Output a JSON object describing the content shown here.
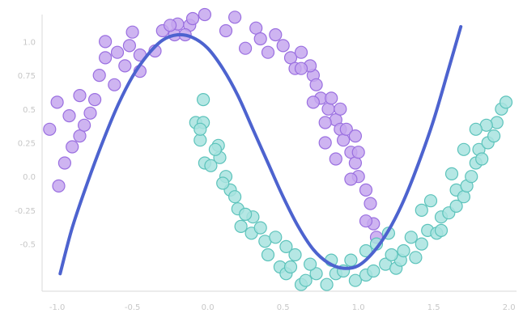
{
  "chart_data": {
    "type": "scatter",
    "title": "",
    "xlabel": "",
    "ylabel": "",
    "xlim": [
      -1.1,
      2.05
    ],
    "ylim": [
      -0.85,
      1.2
    ],
    "grid": false,
    "x_ticks": [
      {
        "value": -1.0,
        "label": "-1.0"
      },
      {
        "value": -0.5,
        "label": "-0.5"
      },
      {
        "value": 0.0,
        "label": "0.0"
      },
      {
        "value": 0.5,
        "label": "0.5"
      },
      {
        "value": 1.0,
        "label": "1.0"
      },
      {
        "value": 1.5,
        "label": "1.5"
      },
      {
        "value": 2.0,
        "label": "2.0"
      }
    ],
    "y_ticks": [
      {
        "value": 1.0,
        "label": "1.0"
      },
      {
        "value": 0.75,
        "label": "0.75"
      },
      {
        "value": 0.5,
        "label": "0.5"
      },
      {
        "value": 0.25,
        "label": "0.25"
      },
      {
        "value": 0.0,
        "label": "0.0"
      },
      {
        "value": -0.25,
        "label": "-0.25"
      },
      {
        "value": -0.5,
        "label": "-0.5"
      }
    ],
    "colors": {
      "class_a_fill": "#c6a7ef",
      "class_a_edge": "#9a6fe0",
      "class_b_fill": "#a8e3df",
      "class_b_edge": "#5cc3bb",
      "boundary": "#4d63cf"
    },
    "series": [
      {
        "points": [
          [
            -1.05,
            0.35
          ],
          [
            -1.0,
            0.55
          ],
          [
            -0.92,
            0.45
          ],
          [
            -0.85,
            0.6
          ],
          [
            -0.78,
            0.47
          ],
          [
            -0.9,
            0.22
          ],
          [
            -0.95,
            0.1
          ],
          [
            -0.99,
            -0.07
          ],
          [
            -0.85,
            0.3
          ],
          [
            -0.82,
            0.38
          ],
          [
            -0.75,
            0.57
          ],
          [
            -0.72,
            0.75
          ],
          [
            -0.68,
            0.88
          ],
          [
            -0.6,
            0.92
          ],
          [
            -0.55,
            0.82
          ],
          [
            -0.52,
            0.97
          ],
          [
            -0.5,
            1.07
          ],
          [
            -0.45,
            0.9
          ],
          [
            -0.45,
            0.78
          ],
          [
            -0.3,
            1.08
          ],
          [
            -0.35,
            0.93
          ],
          [
            -0.22,
            1.05
          ],
          [
            -0.2,
            1.13
          ],
          [
            -0.12,
            1.12
          ],
          [
            -0.1,
            1.17
          ],
          [
            -0.02,
            1.2
          ],
          [
            0.12,
            1.08
          ],
          [
            0.18,
            1.18
          ],
          [
            0.32,
            1.1
          ],
          [
            0.35,
            1.02
          ],
          [
            0.45,
            1.05
          ],
          [
            0.5,
            0.97
          ],
          [
            0.55,
            0.88
          ],
          [
            0.62,
            0.92
          ],
          [
            0.7,
            0.75
          ],
          [
            0.72,
            0.68
          ],
          [
            0.75,
            0.58
          ],
          [
            0.8,
            0.5
          ],
          [
            0.85,
            0.42
          ],
          [
            0.88,
            0.35
          ],
          [
            0.9,
            0.27
          ],
          [
            0.95,
            0.18
          ],
          [
            0.98,
            0.1
          ],
          [
            1.0,
            0.0
          ],
          [
            1.05,
            -0.1
          ],
          [
            1.08,
            -0.2
          ],
          [
            1.1,
            -0.35
          ],
          [
            1.05,
            -0.33
          ],
          [
            1.12,
            -0.45
          ],
          [
            1.0,
            0.18
          ],
          [
            0.92,
            0.35
          ],
          [
            0.82,
            0.58
          ],
          [
            0.68,
            0.82
          ],
          [
            0.58,
            0.8
          ],
          [
            0.85,
            0.13
          ],
          [
            0.78,
            0.25
          ],
          [
            0.98,
            0.3
          ],
          [
            0.4,
            0.92
          ],
          [
            0.25,
            0.95
          ],
          [
            -0.25,
            1.12
          ],
          [
            0.62,
            0.8
          ],
          [
            0.78,
            0.4
          ],
          [
            0.95,
            -0.02
          ],
          [
            0.88,
            0.5
          ],
          [
            0.7,
            0.55
          ],
          [
            -0.62,
            0.68
          ],
          [
            -0.68,
            1.0
          ],
          [
            -0.15,
            1.05
          ]
        ]
      },
      {
        "points": [
          [
            -0.03,
            0.57
          ],
          [
            -0.08,
            0.4
          ],
          [
            -0.03,
            0.4
          ],
          [
            -0.05,
            0.27
          ],
          [
            -0.02,
            0.1
          ],
          [
            0.07,
            0.23
          ],
          [
            0.08,
            0.14
          ],
          [
            0.12,
            0.0
          ],
          [
            0.15,
            -0.1
          ],
          [
            0.2,
            -0.24
          ],
          [
            0.22,
            -0.37
          ],
          [
            0.29,
            -0.42
          ],
          [
            0.3,
            -0.3
          ],
          [
            0.38,
            -0.48
          ],
          [
            0.4,
            -0.58
          ],
          [
            0.48,
            -0.67
          ],
          [
            0.52,
            -0.72
          ],
          [
            0.55,
            -0.67
          ],
          [
            0.62,
            -0.8
          ],
          [
            0.65,
            -0.77
          ],
          [
            0.72,
            -0.72
          ],
          [
            0.79,
            -0.8
          ],
          [
            0.85,
            -0.72
          ],
          [
            0.9,
            -0.7
          ],
          [
            0.98,
            -0.77
          ],
          [
            1.05,
            -0.73
          ],
          [
            1.1,
            -0.7
          ],
          [
            1.18,
            -0.65
          ],
          [
            1.25,
            -0.68
          ],
          [
            1.28,
            -0.62
          ],
          [
            1.3,
            -0.55
          ],
          [
            1.38,
            -0.6
          ],
          [
            1.42,
            -0.5
          ],
          [
            1.46,
            -0.4
          ],
          [
            1.52,
            -0.42
          ],
          [
            1.55,
            -0.3
          ],
          [
            1.6,
            -0.27
          ],
          [
            1.65,
            -0.22
          ],
          [
            1.65,
            -0.1
          ],
          [
            1.7,
            -0.15
          ],
          [
            1.72,
            -0.07
          ],
          [
            1.75,
            0.0
          ],
          [
            1.78,
            0.1
          ],
          [
            1.8,
            0.2
          ],
          [
            1.82,
            0.13
          ],
          [
            1.86,
            0.25
          ],
          [
            1.9,
            0.3
          ],
          [
            1.92,
            0.4
          ],
          [
            1.95,
            0.5
          ],
          [
            1.98,
            0.55
          ],
          [
            1.85,
            0.38
          ],
          [
            1.78,
            0.35
          ],
          [
            1.7,
            0.2
          ],
          [
            1.62,
            0.02
          ],
          [
            1.48,
            -0.18
          ],
          [
            1.42,
            -0.25
          ],
          [
            1.35,
            -0.45
          ],
          [
            1.22,
            -0.58
          ],
          [
            1.12,
            -0.5
          ],
          [
            0.95,
            -0.62
          ],
          [
            0.82,
            -0.62
          ],
          [
            0.68,
            -0.65
          ],
          [
            0.58,
            -0.58
          ],
          [
            0.52,
            -0.52
          ],
          [
            0.45,
            -0.45
          ],
          [
            0.35,
            -0.38
          ],
          [
            0.25,
            -0.28
          ],
          [
            0.18,
            -0.15
          ],
          [
            0.1,
            -0.05
          ],
          [
            0.02,
            0.08
          ],
          [
            0.05,
            0.2
          ],
          [
            -0.05,
            0.35
          ],
          [
            1.55,
            -0.4
          ],
          [
            1.2,
            -0.42
          ],
          [
            1.05,
            -0.55
          ]
        ]
      }
    ],
    "boundary_curve": [
      [
        -0.98,
        -0.72
      ],
      [
        -0.9,
        -0.38
      ],
      [
        -0.8,
        -0.05
      ],
      [
        -0.7,
        0.25
      ],
      [
        -0.6,
        0.52
      ],
      [
        -0.5,
        0.74
      ],
      [
        -0.4,
        0.9
      ],
      [
        -0.3,
        1.01
      ],
      [
        -0.2,
        1.05
      ],
      [
        -0.1,
        1.03
      ],
      [
        0.0,
        0.95
      ],
      [
        0.1,
        0.8
      ],
      [
        0.2,
        0.6
      ],
      [
        0.3,
        0.35
      ],
      [
        0.4,
        0.1
      ],
      [
        0.5,
        -0.15
      ],
      [
        0.6,
        -0.37
      ],
      [
        0.7,
        -0.54
      ],
      [
        0.8,
        -0.64
      ],
      [
        0.9,
        -0.68
      ],
      [
        1.0,
        -0.66
      ],
      [
        1.1,
        -0.56
      ],
      [
        1.2,
        -0.4
      ],
      [
        1.3,
        -0.18
      ],
      [
        1.4,
        0.1
      ],
      [
        1.5,
        0.42
      ],
      [
        1.6,
        0.8
      ],
      [
        1.68,
        1.11
      ]
    ]
  }
}
